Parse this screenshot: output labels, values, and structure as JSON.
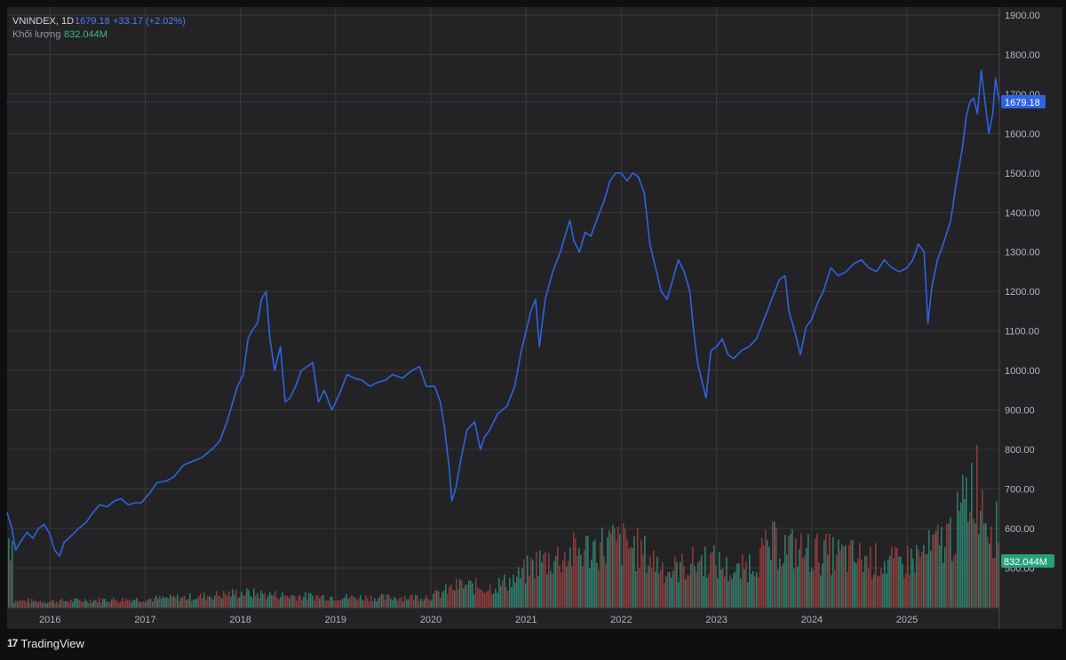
{
  "legend": {
    "symbol": "VNINDEX, 1D",
    "last": "1679.18",
    "change": "+33.17 (+2.02%)",
    "volume_label": "Khối lượng",
    "volume_value": "832.044M"
  },
  "price_tag": "1679.18",
  "volume_tag": "832.044M",
  "branding": {
    "logo": "17",
    "name": "TradingView"
  },
  "colors": {
    "background": "#232325",
    "grid": "#3a3a3c",
    "line": "#2e63e3",
    "volume_up": "#2f8c77",
    "volume_down": "#9c3f3f",
    "price_tag_bg": "#2e63e3",
    "volume_tag_bg": "#26a17b",
    "axis_text": "#b2b5be"
  },
  "chart_data": {
    "type": "line",
    "title": "VNINDEX, 1D",
    "ylim": [
      450,
      1900
    ],
    "y_ticks": [
      "1900.00",
      "1800.00",
      "1700.00",
      "1600.00",
      "1500.00",
      "1400.00",
      "1300.00",
      "1200.00",
      "1100.00",
      "1000.00",
      "900.00",
      "800.00",
      "700.00",
      "600.00",
      "500.00"
    ],
    "x_ticks": [
      "2016",
      "2017",
      "2018",
      "2019",
      "2020",
      "2021",
      "2022",
      "2023",
      "2024",
      "2025"
    ],
    "x_range": [
      2015.55,
      2025.97
    ],
    "grid": true,
    "last_value": 1679.18,
    "series": [
      {
        "values": [
          [
            2015.55,
            640
          ],
          [
            2015.6,
            600
          ],
          [
            2015.64,
            545
          ],
          [
            2015.7,
            570
          ],
          [
            2015.76,
            590
          ],
          [
            2015.82,
            575
          ],
          [
            2015.88,
            600
          ],
          [
            2015.94,
            610
          ],
          [
            2016.0,
            585
          ],
          [
            2016.05,
            545
          ],
          [
            2016.1,
            530
          ],
          [
            2016.15,
            565
          ],
          [
            2016.22,
            580
          ],
          [
            2016.3,
            600
          ],
          [
            2016.38,
            615
          ],
          [
            2016.45,
            640
          ],
          [
            2016.52,
            660
          ],
          [
            2016.6,
            655
          ],
          [
            2016.68,
            670
          ],
          [
            2016.75,
            675
          ],
          [
            2016.82,
            660
          ],
          [
            2016.9,
            665
          ],
          [
            2016.96,
            665
          ],
          [
            2017.05,
            690
          ],
          [
            2017.12,
            715
          ],
          [
            2017.22,
            720
          ],
          [
            2017.3,
            730
          ],
          [
            2017.4,
            760
          ],
          [
            2017.5,
            770
          ],
          [
            2017.6,
            780
          ],
          [
            2017.7,
            800
          ],
          [
            2017.78,
            820
          ],
          [
            2017.86,
            870
          ],
          [
            2017.92,
            920
          ],
          [
            2017.97,
            960
          ],
          [
            2018.03,
            990
          ],
          [
            2018.08,
            1080
          ],
          [
            2018.12,
            1100
          ],
          [
            2018.18,
            1120
          ],
          [
            2018.22,
            1180
          ],
          [
            2018.27,
            1200
          ],
          [
            2018.31,
            1080
          ],
          [
            2018.36,
            1000
          ],
          [
            2018.42,
            1060
          ],
          [
            2018.47,
            920
          ],
          [
            2018.52,
            930
          ],
          [
            2018.58,
            960
          ],
          [
            2018.64,
            1000
          ],
          [
            2018.7,
            1010
          ],
          [
            2018.76,
            1020
          ],
          [
            2018.82,
            920
          ],
          [
            2018.88,
            950
          ],
          [
            2018.96,
            900
          ],
          [
            2019.04,
            940
          ],
          [
            2019.12,
            990
          ],
          [
            2019.2,
            980
          ],
          [
            2019.28,
            975
          ],
          [
            2019.36,
            960
          ],
          [
            2019.44,
            970
          ],
          [
            2019.52,
            975
          ],
          [
            2019.6,
            990
          ],
          [
            2019.7,
            980
          ],
          [
            2019.8,
            1000
          ],
          [
            2019.88,
            1010
          ],
          [
            2019.95,
            960
          ],
          [
            2020.04,
            960
          ],
          [
            2020.1,
            920
          ],
          [
            2020.14,
            860
          ],
          [
            2020.19,
            760
          ],
          [
            2020.22,
            670
          ],
          [
            2020.26,
            700
          ],
          [
            2020.32,
            780
          ],
          [
            2020.38,
            850
          ],
          [
            2020.46,
            870
          ],
          [
            2020.52,
            800
          ],
          [
            2020.56,
            830
          ],
          [
            2020.62,
            850
          ],
          [
            2020.7,
            890
          ],
          [
            2020.8,
            910
          ],
          [
            2020.88,
            960
          ],
          [
            2020.95,
            1050
          ],
          [
            2021.0,
            1100
          ],
          [
            2021.05,
            1150
          ],
          [
            2021.1,
            1180
          ],
          [
            2021.14,
            1060
          ],
          [
            2021.2,
            1180
          ],
          [
            2021.28,
            1250
          ],
          [
            2021.36,
            1300
          ],
          [
            2021.42,
            1350
          ],
          [
            2021.46,
            1380
          ],
          [
            2021.5,
            1330
          ],
          [
            2021.56,
            1300
          ],
          [
            2021.62,
            1350
          ],
          [
            2021.68,
            1340
          ],
          [
            2021.74,
            1380
          ],
          [
            2021.82,
            1430
          ],
          [
            2021.88,
            1480
          ],
          [
            2021.94,
            1500
          ],
          [
            2022.0,
            1500
          ],
          [
            2022.06,
            1480
          ],
          [
            2022.12,
            1500
          ],
          [
            2022.18,
            1490
          ],
          [
            2022.24,
            1450
          ],
          [
            2022.3,
            1320
          ],
          [
            2022.36,
            1260
          ],
          [
            2022.42,
            1200
          ],
          [
            2022.48,
            1180
          ],
          [
            2022.54,
            1230
          ],
          [
            2022.6,
            1280
          ],
          [
            2022.66,
            1250
          ],
          [
            2022.72,
            1200
          ],
          [
            2022.76,
            1100
          ],
          [
            2022.8,
            1020
          ],
          [
            2022.86,
            960
          ],
          [
            2022.89,
            930
          ],
          [
            2022.94,
            1050
          ],
          [
            2023.0,
            1060
          ],
          [
            2023.06,
            1080
          ],
          [
            2023.12,
            1040
          ],
          [
            2023.18,
            1030
          ],
          [
            2023.26,
            1050
          ],
          [
            2023.34,
            1060
          ],
          [
            2023.42,
            1080
          ],
          [
            2023.5,
            1130
          ],
          [
            2023.58,
            1180
          ],
          [
            2023.66,
            1230
          ],
          [
            2023.72,
            1240
          ],
          [
            2023.76,
            1150
          ],
          [
            2023.82,
            1100
          ],
          [
            2023.88,
            1040
          ],
          [
            2023.94,
            1110
          ],
          [
            2024.0,
            1130
          ],
          [
            2024.06,
            1170
          ],
          [
            2024.12,
            1200
          ],
          [
            2024.2,
            1260
          ],
          [
            2024.28,
            1240
          ],
          [
            2024.36,
            1250
          ],
          [
            2024.44,
            1270
          ],
          [
            2024.52,
            1280
          ],
          [
            2024.6,
            1260
          ],
          [
            2024.68,
            1250
          ],
          [
            2024.76,
            1280
          ],
          [
            2024.84,
            1260
          ],
          [
            2024.92,
            1250
          ],
          [
            2025.0,
            1260
          ],
          [
            2025.06,
            1280
          ],
          [
            2025.12,
            1320
          ],
          [
            2025.18,
            1300
          ],
          [
            2025.22,
            1120
          ],
          [
            2025.26,
            1210
          ],
          [
            2025.32,
            1280
          ],
          [
            2025.38,
            1320
          ],
          [
            2025.46,
            1380
          ],
          [
            2025.52,
            1480
          ],
          [
            2025.58,
            1560
          ],
          [
            2025.62,
            1640
          ],
          [
            2025.66,
            1680
          ],
          [
            2025.7,
            1690
          ],
          [
            2025.74,
            1650
          ],
          [
            2025.78,
            1760
          ],
          [
            2025.82,
            1680
          ],
          [
            2025.86,
            1600
          ],
          [
            2025.9,
            1650
          ],
          [
            2025.93,
            1740
          ],
          [
            2025.97,
            1679
          ]
        ]
      }
    ],
    "volume": {
      "ylim": [
        0,
        2000
      ],
      "values": [
        [
          2015.6,
          100
        ],
        [
          2016.0,
          90
        ],
        [
          2016.5,
          110
        ],
        [
          2017.0,
          120
        ],
        [
          2017.5,
          150
        ],
        [
          2018.0,
          210
        ],
        [
          2018.5,
          170
        ],
        [
          2019.0,
          150
        ],
        [
          2019.5,
          140
        ],
        [
          2020.0,
          160
        ],
        [
          2020.3,
          320
        ],
        [
          2020.6,
          280
        ],
        [
          2020.9,
          420
        ],
        [
          2021.1,
          640
        ],
        [
          2021.5,
          780
        ],
        [
          2021.9,
          920
        ],
        [
          2022.1,
          880
        ],
        [
          2022.5,
          520
        ],
        [
          2022.9,
          700
        ],
        [
          2023.2,
          480
        ],
        [
          2023.6,
          900
        ],
        [
          2023.9,
          800
        ],
        [
          2024.2,
          760
        ],
        [
          2024.5,
          700
        ],
        [
          2024.9,
          620
        ],
        [
          2025.2,
          780
        ],
        [
          2025.5,
          1100
        ],
        [
          2025.7,
          1900
        ],
        [
          2025.85,
          1300
        ],
        [
          2025.97,
          1000
        ]
      ]
    }
  }
}
